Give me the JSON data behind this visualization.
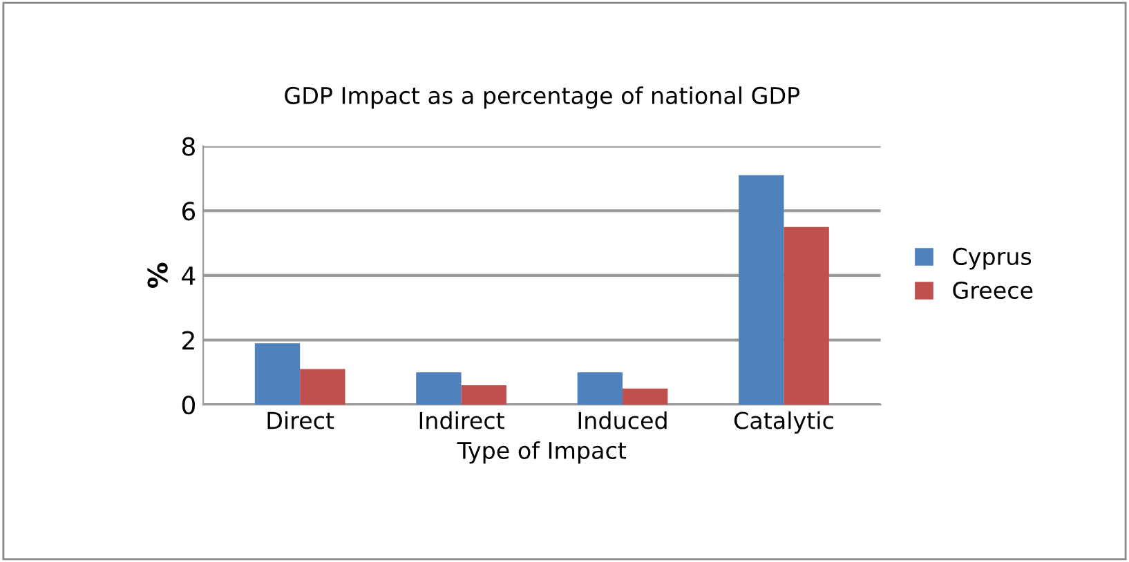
{
  "chart_data": {
    "type": "bar",
    "title": "GDP Impact as a percentage of national GDP",
    "xlabel": "Type of Impact",
    "ylabel": "%",
    "categories": [
      "Direct",
      "Indirect",
      "Induced",
      "Catalytic"
    ],
    "series": [
      {
        "name": "Cyprus",
        "color": "#4f81bd",
        "values": [
          1.9,
          1.0,
          1.0,
          7.1
        ]
      },
      {
        "name": "Greece",
        "color": "#c0504d",
        "values": [
          1.1,
          0.6,
          0.5,
          5.5
        ]
      }
    ],
    "ylim": [
      0,
      8
    ],
    "yticks": [
      0,
      2,
      4,
      6,
      8
    ],
    "grid": "y",
    "legend": "right"
  }
}
